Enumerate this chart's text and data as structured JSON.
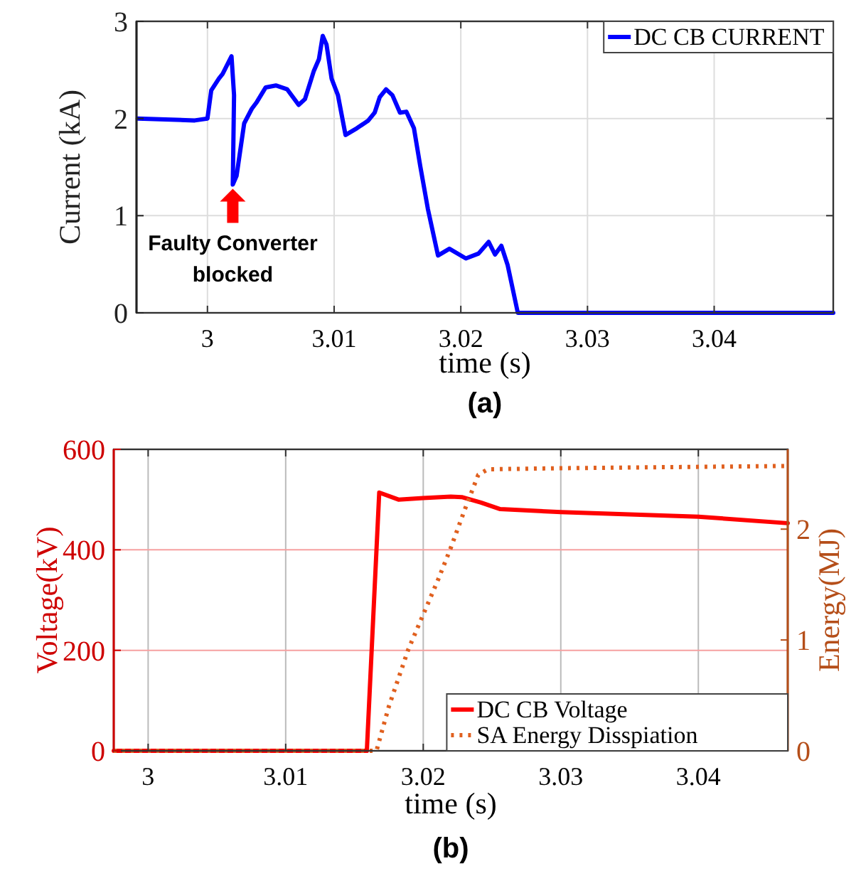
{
  "chart_data": [
    {
      "type": "line",
      "title": "(a)",
      "xlabel": "time (s)",
      "ylabel": "Current (kA)",
      "xlim": [
        2.9944,
        3.0494
      ],
      "xticks": [
        3,
        3.01,
        3.02,
        3.03,
        3.04
      ],
      "ylim": [
        0,
        3
      ],
      "yticks": [
        0,
        1,
        2,
        3
      ],
      "grid": true,
      "legend": "top right",
      "line_style": "solid",
      "annotations": [
        {
          "text": "Faulty Converter blocked",
          "x": 3.002,
          "y": 1.32
        }
      ],
      "series": [
        {
          "name": "DC CB CURRENT",
          "color": "#0000ff",
          "x": [
            2.9945,
            2.999,
            3.0,
            3.0003,
            3.0009,
            3.0012,
            3.0019,
            3.0021,
            3.002,
            3.0023,
            3.0029,
            3.0035,
            3.0039,
            3.0046,
            3.0054,
            3.0063,
            3.0072,
            3.0077,
            3.0084,
            3.0088,
            3.0091,
            3.0094,
            3.0098,
            3.0103,
            3.0109,
            3.0118,
            3.0127,
            3.0132,
            3.0136,
            3.0141,
            3.0146,
            3.0152,
            3.0157,
            3.0163,
            3.0168,
            3.0174,
            3.0182,
            3.0191,
            3.0204,
            3.0214,
            3.0222,
            3.0227,
            3.0232,
            3.0237,
            3.0245,
            3.0494
          ],
          "values": [
            2.0,
            1.98,
            2.0,
            2.29,
            2.41,
            2.46,
            2.64,
            2.24,
            1.32,
            1.41,
            1.95,
            2.1,
            2.17,
            2.32,
            2.34,
            2.3,
            2.14,
            2.2,
            2.49,
            2.61,
            2.85,
            2.76,
            2.41,
            2.24,
            1.83,
            1.9,
            1.98,
            2.06,
            2.22,
            2.3,
            2.24,
            2.06,
            2.07,
            1.9,
            1.51,
            1.07,
            0.59,
            0.66,
            0.56,
            0.61,
            0.73,
            0.6,
            0.69,
            0.49,
            0,
            0
          ]
        }
      ]
    },
    {
      "type": "line",
      "title": "(b)",
      "xlabel": "time (s)",
      "ylabel": "Voltage(kV)",
      "y2label": "Energy(MJ)",
      "xlim": [
        2.9975,
        3.0465
      ],
      "xticks": [
        3,
        3.01,
        3.02,
        3.03,
        3.04
      ],
      "ylim": [
        0,
        600
      ],
      "yticks": [
        0,
        200,
        400,
        600
      ],
      "y2lim": [
        0,
        2.72
      ],
      "y2ticks": [
        0,
        1,
        2
      ],
      "grid": true,
      "legend": "bottom right",
      "series": [
        {
          "name": "DC CB Voltage",
          "color": "#ff0000",
          "line_style": "solid",
          "x": [
            2.9975,
            3.0159,
            3.0168,
            3.0182,
            3.02,
            3.022,
            3.0228,
            3.0242,
            3.0256,
            3.03,
            3.04,
            3.0465
          ],
          "values": [
            0,
            0,
            514,
            500,
            503,
            506,
            505,
            494,
            481,
            475,
            466,
            453
          ]
        },
        {
          "name": "SA Energy Disspiation",
          "color": "#e0601f",
          "line_style": "dotted",
          "axis": "y2",
          "x": [
            2.9975,
            3.0166,
            3.0175,
            3.0189,
            3.02,
            3.0211,
            3.022,
            3.023,
            3.024,
            3.0247,
            3.03,
            3.0465
          ],
          "values": [
            0,
            0,
            0.4,
            0.91,
            1.23,
            1.55,
            1.83,
            2.17,
            2.49,
            2.54,
            2.55,
            2.57
          ]
        }
      ]
    }
  ]
}
